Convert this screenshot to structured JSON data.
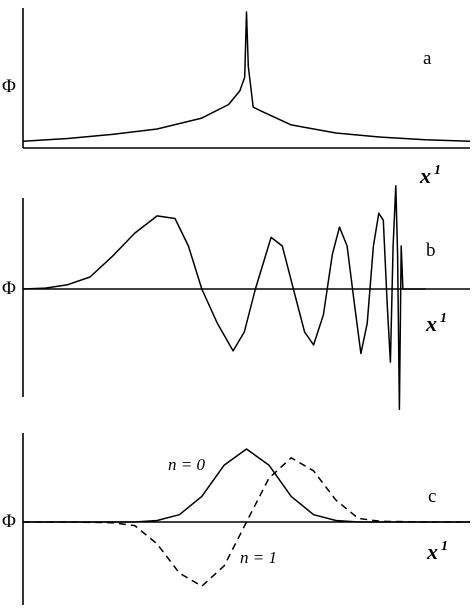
{
  "chart_data": [
    {
      "panel_label": "a",
      "type": "line",
      "ylabel": "Φ",
      "xlabel": "x",
      "xlabel_superscript": "1",
      "xlim": [
        0,
        10
      ],
      "ylim": [
        0,
        1
      ],
      "series": [
        {
          "style": "solid",
          "x": [
            0.0,
            1.0,
            2.0,
            3.0,
            4.0,
            4.6,
            4.85,
            4.96,
            5.0,
            5.04,
            5.15,
            5.4,
            6.0,
            7.0,
            8.0,
            9.0,
            10.0
          ],
          "y": [
            0.05,
            0.07,
            0.1,
            0.14,
            0.22,
            0.32,
            0.42,
            0.52,
            1.0,
            0.6,
            0.3,
            0.26,
            0.17,
            0.11,
            0.08,
            0.06,
            0.05
          ]
        }
      ]
    },
    {
      "panel_label": "b",
      "type": "line",
      "ylabel": "Φ",
      "xlabel": "x",
      "xlabel_superscript": "1",
      "xlim": [
        0,
        10
      ],
      "ylim": [
        -1,
        1
      ],
      "series": [
        {
          "style": "solid",
          "x": [
            0.0,
            0.5,
            1.0,
            1.5,
            2.0,
            2.5,
            3.0,
            3.4,
            3.7,
            4.0,
            4.35,
            4.7,
            4.95,
            5.2,
            5.55,
            5.8,
            6.05,
            6.3,
            6.5,
            6.72,
            6.92,
            7.08,
            7.25,
            7.42,
            7.56,
            7.7,
            7.84,
            7.96,
            8.06,
            8.15,
            8.22,
            8.28,
            8.34,
            8.38,
            8.42,
            8.46,
            8.5,
            8.6,
            8.8,
            9.0
          ],
          "y": [
            0.0,
            0.01,
            0.05,
            0.14,
            0.38,
            0.65,
            0.85,
            0.82,
            0.5,
            0.0,
            -0.4,
            -0.72,
            -0.5,
            0.0,
            0.6,
            0.5,
            0.0,
            -0.5,
            -0.65,
            -0.3,
            0.4,
            0.72,
            0.5,
            -0.2,
            -0.75,
            -0.4,
            0.5,
            0.88,
            0.8,
            -0.2,
            -0.85,
            0.5,
            1.2,
            0.4,
            -1.4,
            0.5,
            0.0,
            0.0,
            0.0,
            0.0
          ]
        }
      ]
    },
    {
      "panel_label": "c",
      "type": "line",
      "ylabel": "Φ",
      "xlabel": "x",
      "xlabel_superscript": "1",
      "xlim": [
        -5,
        5
      ],
      "ylim": [
        -1,
        1
      ],
      "annotations": [
        {
          "text": "n = 0"
        },
        {
          "text": "n = 1"
        }
      ],
      "series": [
        {
          "name": "n = 0",
          "style": "solid",
          "x": [
            -5.0,
            -4.0,
            -3.5,
            -3.0,
            -2.5,
            -2.0,
            -1.5,
            -1.0,
            -0.5,
            0.0,
            0.5,
            1.0,
            1.5,
            2.0,
            2.5,
            3.0,
            3.5,
            4.0,
            5.0
          ],
          "y": [
            0.0,
            0.0,
            0.0,
            0.0,
            0.0,
            0.02,
            0.1,
            0.35,
            0.78,
            1.0,
            0.78,
            0.35,
            0.1,
            0.02,
            0.0,
            0.0,
            0.0,
            0.0,
            0.0
          ]
        },
        {
          "name": "n = 1",
          "style": "dashed",
          "x": [
            -5.0,
            -4.0,
            -3.0,
            -2.5,
            -2.0,
            -1.5,
            -1.0,
            -0.5,
            0.0,
            0.5,
            1.0,
            1.5,
            2.0,
            2.5,
            3.0,
            4.0,
            5.0
          ],
          "y": [
            0.0,
            0.0,
            -0.01,
            -0.05,
            -0.3,
            -0.7,
            -0.88,
            -0.6,
            0.0,
            0.6,
            0.88,
            0.7,
            0.3,
            0.05,
            0.01,
            0.0,
            0.0
          ]
        }
      ]
    }
  ]
}
